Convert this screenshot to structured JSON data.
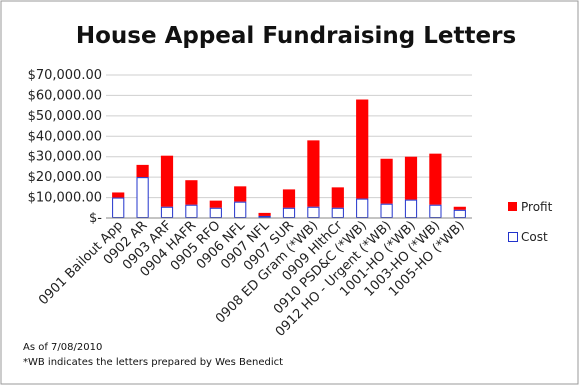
{
  "chart_data": {
    "type": "bar",
    "stacked": true,
    "title": "House Appeal Fundraising Letters",
    "categories": [
      "0901 Bailout App",
      "0902 AR",
      "0903 ARF",
      "0904 HAFR",
      "0905 RFO",
      "0906 NFL",
      "0907 NFL",
      "0907 SUR",
      "0908 ED Gram (*WB)",
      "0909 HlthCr",
      "0910 PSD&C (*WB)",
      "0912 HO - Urgent (*WB)",
      "1001-HO (*WB)",
      "1003-HO (*WB)",
      "1005-HO (*WB)"
    ],
    "series": [
      {
        "name": "Cost",
        "color": "#ffffff",
        "stroke": "#2233cc",
        "values": [
          10000,
          20000,
          5500,
          6500,
          5000,
          8000,
          1000,
          5000,
          5500,
          5000,
          9500,
          7000,
          9000,
          6500,
          4000
        ]
      },
      {
        "name": "Profit",
        "color": "#ff0000",
        "values": [
          2500,
          6000,
          25000,
          12000,
          3500,
          7500,
          1500,
          9000,
          32500,
          10000,
          48500,
          22000,
          21000,
          25000,
          1500
        ]
      }
    ],
    "ytick_labels": [
      "$-",
      "$10,000.00",
      "$20,000.00",
      "$30,000.00",
      "$40,000.00",
      "$50,000.00",
      "$60,000.00",
      "$70,000.00"
    ],
    "ylim": [
      0,
      70000
    ],
    "ystep": 10000,
    "grid": true,
    "legend_placement": "right"
  },
  "notes": {
    "as_of": "As of 7/08/2010",
    "wb_note": "*WB indicates the letters prepared by Wes Benedict"
  },
  "colors": {
    "background": "#ffffff",
    "frame": "#9a9a9a",
    "gridline": "#cfcfcf"
  }
}
